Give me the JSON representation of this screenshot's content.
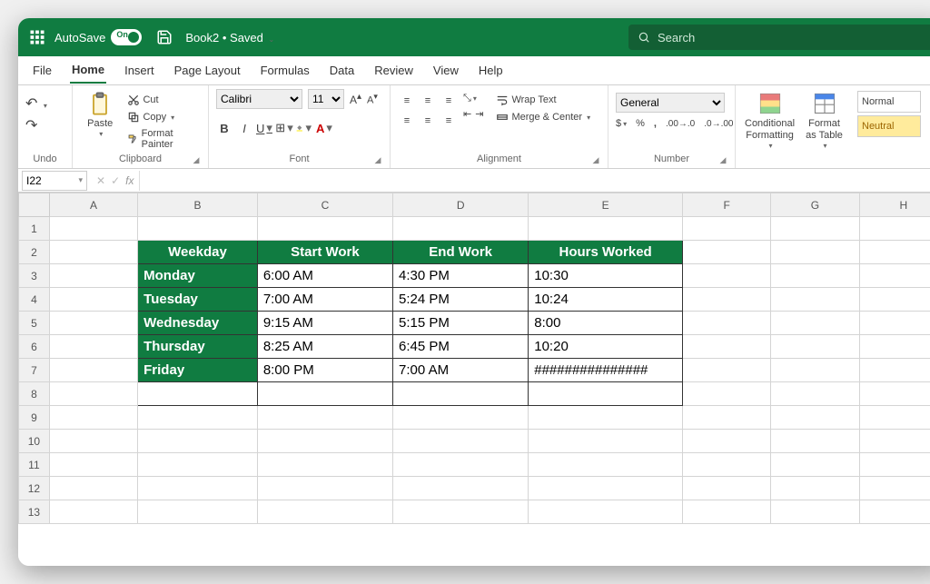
{
  "titlebar": {
    "autosave_label": "AutoSave",
    "autosave_state": "On",
    "doc_name": "Book2",
    "doc_status": "Saved",
    "search_placeholder": "Search"
  },
  "tabs": {
    "items": [
      "File",
      "Home",
      "Insert",
      "Page Layout",
      "Formulas",
      "Data",
      "Review",
      "View",
      "Help"
    ],
    "active": "Home"
  },
  "ribbon": {
    "undo": {
      "label": "Undo"
    },
    "clipboard": {
      "paste": "Paste",
      "cut": "Cut",
      "copy": "Copy",
      "format_painter": "Format Painter",
      "label": "Clipboard"
    },
    "font": {
      "name": "Calibri",
      "size": "11",
      "label": "Font"
    },
    "alignment": {
      "wrap": "Wrap Text",
      "merge": "Merge & Center",
      "label": "Alignment"
    },
    "number": {
      "format": "General",
      "label": "Number"
    },
    "styles": {
      "conditional": "Conditional Formatting",
      "table": "Format as Table",
      "normal": "Normal",
      "neutral": "Neutral"
    }
  },
  "formula_bar": {
    "cell_ref": "I22",
    "formula": ""
  },
  "sheet": {
    "columns": [
      "A",
      "B",
      "C",
      "D",
      "E",
      "F",
      "G",
      "H"
    ],
    "rows": 13,
    "table": {
      "headers": [
        "Weekday",
        "Start Work",
        "End Work",
        "Hours Worked"
      ],
      "header_bg": "#107c41",
      "header_fg": "#ffffff",
      "day_bg": "#107c41",
      "day_fg": "#ffffff",
      "border_color": "#000000",
      "data": [
        {
          "day": "Monday",
          "start": "6:00 AM",
          "end": "4:30 PM",
          "hours": "10:30"
        },
        {
          "day": "Tuesday",
          "start": "7:00 AM",
          "end": "5:24 PM",
          "hours": "10:24"
        },
        {
          "day": "Wednesday",
          "start": "9:15 AM",
          "end": "5:15 PM",
          "hours": "8:00"
        },
        {
          "day": "Thursday",
          "start": "8:25 AM",
          "end": "6:45 PM",
          "hours": "10:20"
        },
        {
          "day": "Friday",
          "start": "8:00 PM",
          "end": "7:00 AM",
          "hours": "###############"
        }
      ]
    }
  },
  "colors": {
    "accent": "#107c41",
    "titlebar": "#107c41",
    "search_bg": "#135f34"
  }
}
